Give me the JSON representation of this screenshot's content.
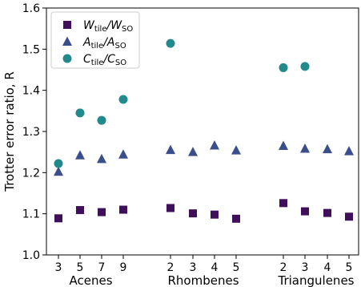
{
  "chart_data": {
    "type": "scatter",
    "ylabel": "Trotter error ratio, R",
    "ylim": [
      1.0,
      1.6
    ],
    "yticks": [
      "1.0",
      "1.1",
      "1.2",
      "1.3",
      "1.4",
      "1.5",
      "1.6"
    ],
    "grid": false,
    "legend_position": "top-left",
    "groups": [
      {
        "name": "Acenes",
        "categories": [
          "3",
          "5",
          "7",
          "9"
        ]
      },
      {
        "name": "Rhombenes",
        "categories": [
          "2",
          "3",
          "4",
          "5"
        ]
      },
      {
        "name": "Triangulenes",
        "categories": [
          "2",
          "3",
          "4",
          "5"
        ]
      }
    ],
    "series": [
      {
        "name": "W_tile/W_SO",
        "legend": {
          "main1": "W",
          "sub1": "tile",
          "main2": "/W",
          "sub2": "SO"
        },
        "marker": "square",
        "color": "#3f0f5a",
        "values": [
          [
            1.089,
            1.109,
            1.104,
            1.11
          ],
          [
            1.114,
            1.101,
            1.098,
            1.088
          ],
          [
            1.126,
            1.106,
            1.102,
            1.093
          ]
        ]
      },
      {
        "name": "A_tile/A_SO",
        "legend": {
          "main1": "A",
          "sub1": "tile",
          "main2": "/A",
          "sub2": "SO"
        },
        "marker": "triangle",
        "color": "#3b4e8c",
        "values": [
          [
            1.202,
            1.242,
            1.233,
            1.244
          ],
          [
            1.255,
            1.25,
            1.266,
            1.254
          ],
          [
            1.265,
            1.258,
            1.257,
            1.252
          ]
        ]
      },
      {
        "name": "C_tile/C_SO",
        "legend": {
          "main1": "C",
          "sub1": "tile",
          "main2": "/C",
          "sub2": "SO"
        },
        "marker": "circle",
        "color": "#22898c",
        "values": [
          [
            1.222,
            1.345,
            1.327,
            1.378
          ],
          [
            1.514,
            null,
            null,
            null
          ],
          [
            1.455,
            1.458,
            null,
            null
          ]
        ]
      }
    ]
  }
}
